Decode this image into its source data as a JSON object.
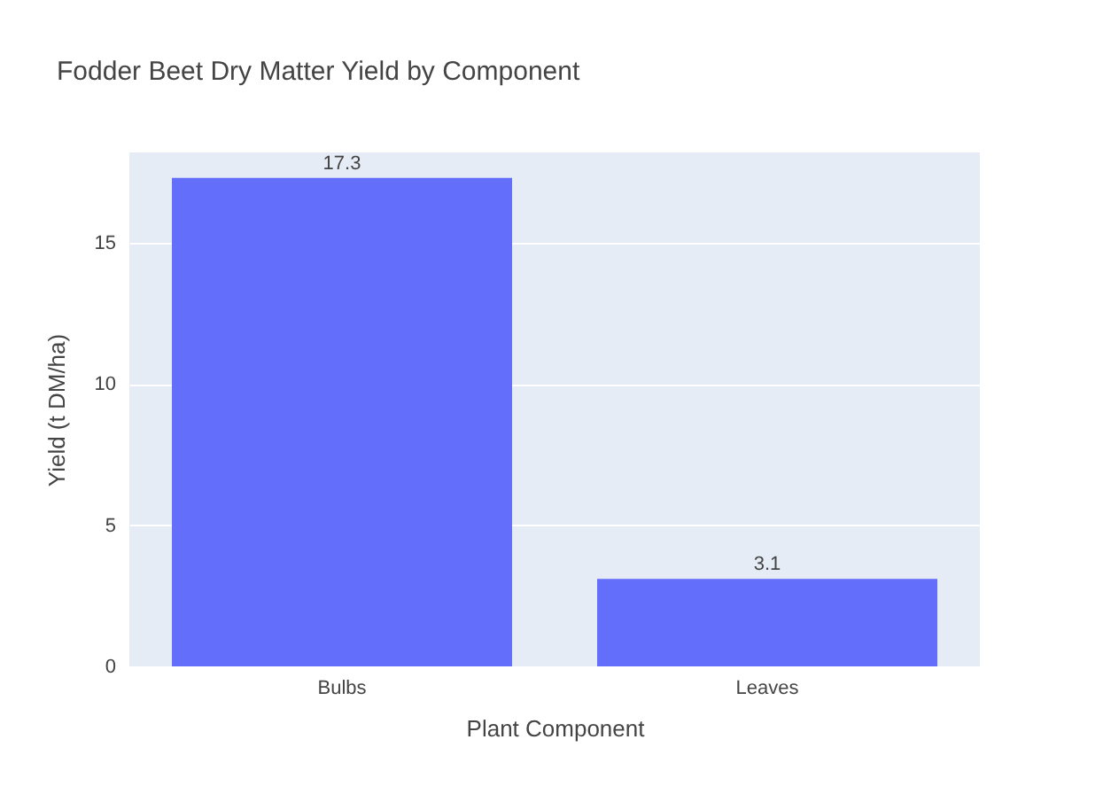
{
  "chart_data": {
    "type": "bar",
    "title": "Fodder Beet Dry Matter Yield by Component",
    "xlabel": "Plant Component",
    "ylabel": "Yield (t DM/ha)",
    "categories": [
      "Bulbs",
      "Leaves"
    ],
    "values": [
      17.3,
      3.1
    ],
    "color": "#636efa",
    "ylim": [
      0,
      18.2
    ],
    "yticks": [
      0,
      5,
      10,
      15
    ],
    "grid": "y",
    "data_labels": true
  }
}
